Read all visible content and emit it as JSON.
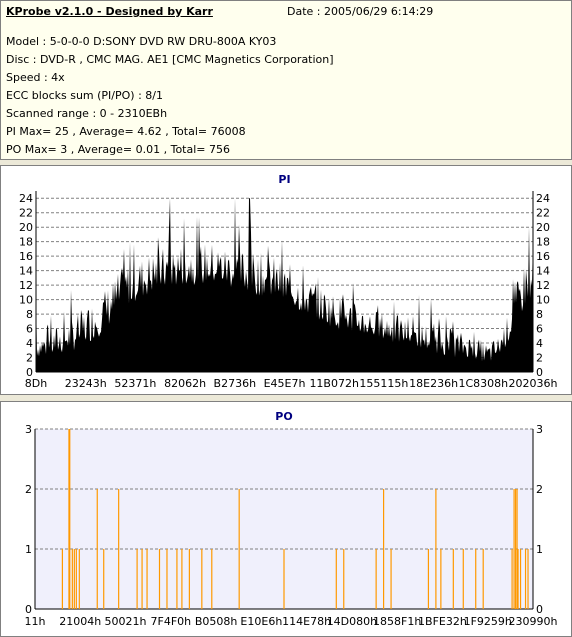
{
  "info": {
    "title": "KProbe v2.1.0 - Designed by Karr",
    "date": "Date : 2005/06/29 6:14:29",
    "lines": [
      "Model : 5-0-0-0 D:SONY     DVD RW DRU-800A  KY03",
      "Disc : DVD-R , CMC MAG. AE1 [CMC Magnetics Corporation]",
      "Speed : 4x",
      "ECC blocks sum (PI/PO) : 8/1",
      "Scanned range : 0 - 2310EBh",
      "PI Max= 25 , Average= 4.62 , Total= 76008",
      "PO Max= 3 , Average= 0.01 , Total= 756"
    ]
  },
  "colors": {
    "pi_fill": "#000000",
    "po_bar": "#ff9900",
    "title": "#000080",
    "plot_bg_po": "#f0f0fc",
    "grid": "#808080"
  },
  "chart_data": [
    {
      "type": "area",
      "title": "PI",
      "xlabel": "",
      "ylabel": "",
      "ylim": [
        0,
        25
      ],
      "yticks": [
        0,
        2,
        4,
        6,
        8,
        10,
        12,
        14,
        16,
        18,
        20,
        22,
        24
      ],
      "x_tick_labels": [
        "8Dh",
        "23243h",
        "52371h",
        "82062h",
        "B2736h",
        "E45E7h",
        "11B072h",
        "155115h",
        "18E236h",
        "1C8308h",
        "202036h"
      ],
      "grid": "horizontal dashed",
      "max": 25,
      "average": 4.62,
      "profile_x": [
        0,
        0.03,
        0.08,
        0.13,
        0.18,
        0.24,
        0.3,
        0.36,
        0.42,
        0.48,
        0.54,
        0.6,
        0.66,
        0.72,
        0.78,
        0.84,
        0.88,
        0.91,
        0.93,
        0.95,
        0.97,
        0.985,
        1.0
      ],
      "profile_envelope": [
        5,
        6,
        8,
        11,
        15,
        17,
        18,
        18,
        17,
        16,
        13,
        11,
        9,
        8,
        7,
        6,
        5,
        4,
        5,
        8,
        13,
        16,
        19
      ],
      "profile_base": [
        2,
        2,
        3,
        5,
        9,
        11,
        12,
        12,
        11,
        10,
        8,
        6,
        5,
        4,
        3,
        2,
        2,
        1,
        2,
        4,
        7,
        9,
        11
      ],
      "spikes": [
        [
          0.0,
          11
        ],
        [
          0.27,
          24
        ],
        [
          0.4,
          24
        ],
        [
          0.43,
          24
        ]
      ]
    },
    {
      "type": "bar",
      "title": "PO",
      "xlabel": "",
      "ylabel": "",
      "ylim": [
        0,
        3
      ],
      "yticks": [
        0,
        1,
        2,
        3
      ],
      "x_tick_labels": [
        "11h",
        "21004h",
        "50021h",
        "7F4F0h",
        "B0508h",
        "E10E6h",
        "114E78h",
        "14D080h",
        "1858F1h",
        "1BFE32h",
        "1F9259h",
        "230990h"
      ],
      "grid": "horizontal dashed",
      "max": 3,
      "average": 0.01,
      "bars": [
        [
          0.055,
          1
        ],
        [
          0.069,
          3
        ],
        [
          0.075,
          1
        ],
        [
          0.079,
          1
        ],
        [
          0.083,
          1
        ],
        [
          0.089,
          1
        ],
        [
          0.125,
          2
        ],
        [
          0.138,
          1
        ],
        [
          0.168,
          2
        ],
        [
          0.205,
          1
        ],
        [
          0.215,
          1
        ],
        [
          0.225,
          1
        ],
        [
          0.25,
          1
        ],
        [
          0.265,
          1
        ],
        [
          0.285,
          1
        ],
        [
          0.295,
          1
        ],
        [
          0.31,
          1
        ],
        [
          0.335,
          1
        ],
        [
          0.355,
          1
        ],
        [
          0.41,
          2
        ],
        [
          0.5,
          1
        ],
        [
          0.605,
          1
        ],
        [
          0.62,
          1
        ],
        [
          0.685,
          1
        ],
        [
          0.7,
          2
        ],
        [
          0.715,
          1
        ],
        [
          0.79,
          1
        ],
        [
          0.805,
          2
        ],
        [
          0.815,
          1
        ],
        [
          0.84,
          1
        ],
        [
          0.86,
          1
        ],
        [
          0.885,
          1
        ],
        [
          0.9,
          1
        ],
        [
          0.958,
          1
        ],
        [
          0.962,
          2
        ],
        [
          0.965,
          2
        ],
        [
          0.968,
          2
        ],
        [
          0.97,
          1
        ],
        [
          0.975,
          1
        ],
        [
          0.985,
          1
        ],
        [
          0.99,
          1
        ]
      ]
    }
  ]
}
